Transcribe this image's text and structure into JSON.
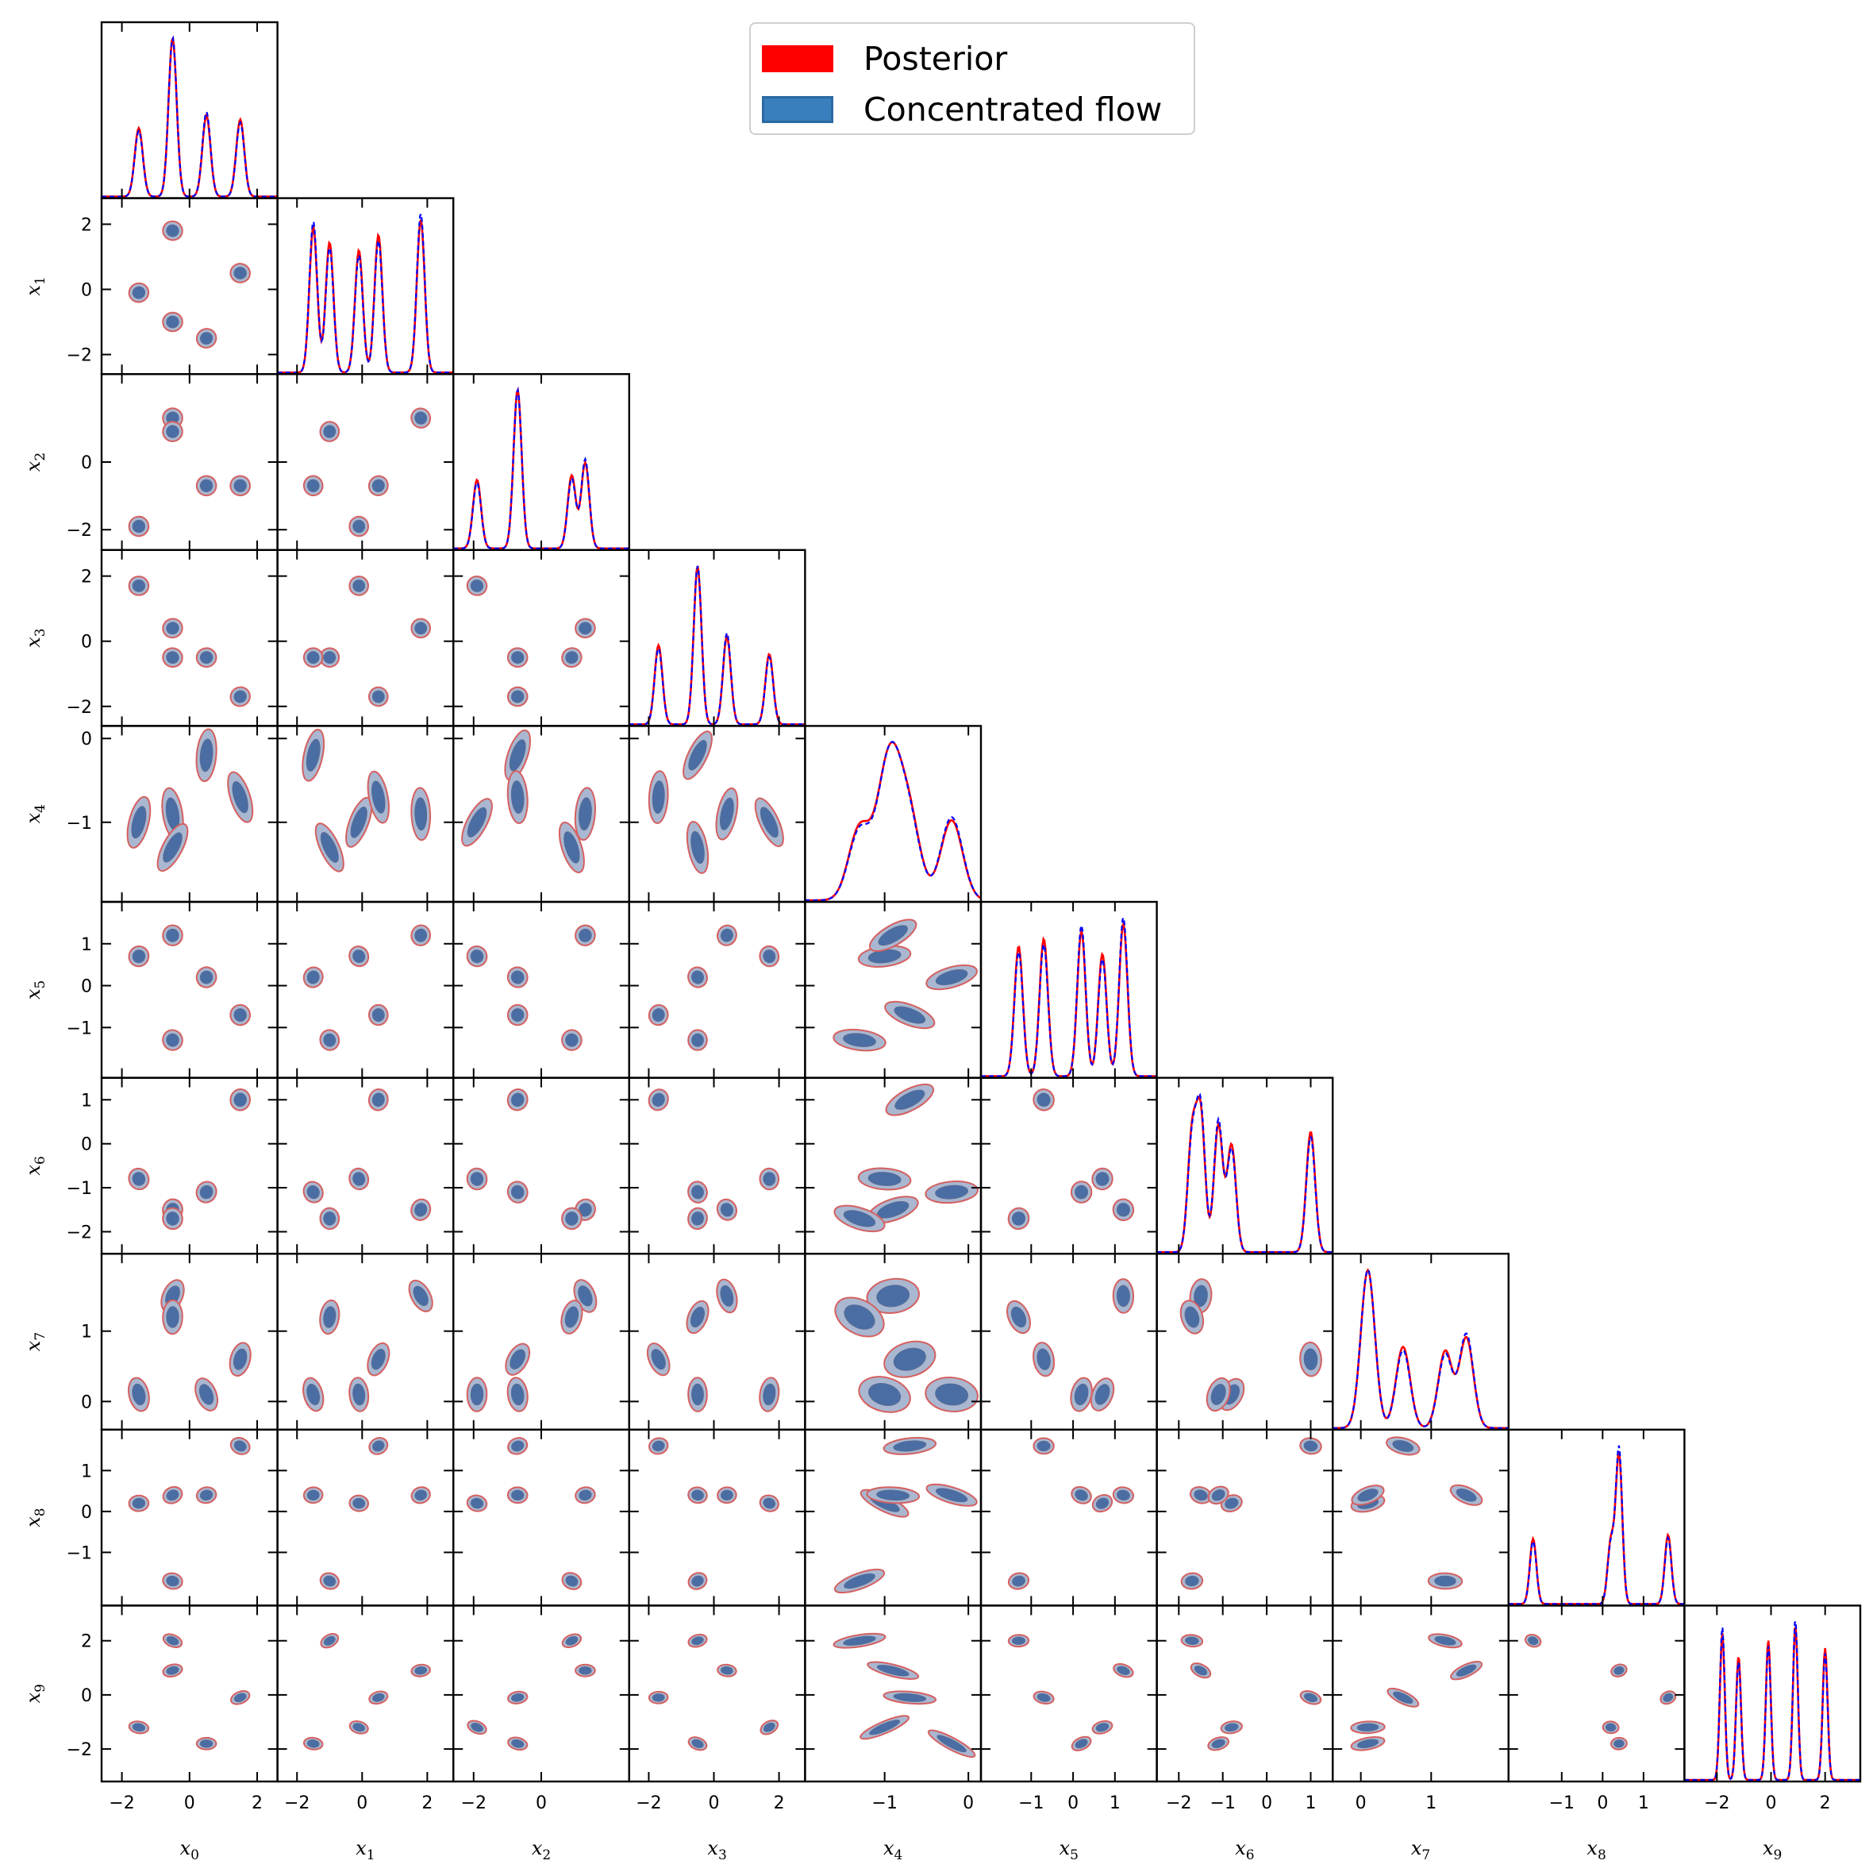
{
  "legend": {
    "posterior_label": "Posterior",
    "flow_label": "Concentrated flow",
    "posterior_color": "#ff0000",
    "flow_color": "#3a7fbd",
    "flow_edge_color": "#2a6aa3"
  },
  "colors": {
    "posterior_line": "#ff0000",
    "flow_line": "#0000ff",
    "contour_outer_fill": "#aab7d0",
    "contour_inner_fill": "#4a6da3",
    "contour_outer_edge": "#d56060",
    "contour_inner_edge": "#556d99"
  },
  "chart_data": {
    "type": "corner",
    "title": "",
    "dimension_labels": [
      "x_0",
      "x_1",
      "x_2",
      "x_3",
      "x_4",
      "x_5",
      "x_6",
      "x_7",
      "x_8",
      "x_9"
    ],
    "axis_ranges": [
      [
        -2.6,
        2.6
      ],
      [
        -2.6,
        2.8
      ],
      [
        -2.6,
        2.6
      ],
      [
        -2.6,
        2.8
      ],
      [
        -1.95,
        0.15
      ],
      [
        -2.2,
        2.0
      ],
      [
        -2.5,
        1.5
      ],
      [
        -0.4,
        2.1
      ],
      [
        -2.3,
        2.0
      ],
      [
        -3.2,
        3.3
      ]
    ],
    "ticks": [
      [
        -2,
        0,
        2
      ],
      [
        -2,
        0,
        2
      ],
      [
        -2,
        0
      ],
      [
        -2,
        0,
        2
      ],
      [
        -1,
        0
      ],
      [
        -1,
        0,
        1
      ],
      [
        -2,
        -1,
        0,
        1
      ],
      [
        0,
        1
      ],
      [
        -1,
        0,
        1
      ],
      [
        -2,
        0,
        2
      ]
    ],
    "tick_labels": [
      [
        "−2",
        "0",
        "2"
      ],
      [
        "−2",
        "0",
        "2"
      ],
      [
        "−2",
        "0"
      ],
      [
        "−2",
        "0",
        "2"
      ],
      [
        "−1",
        "0"
      ],
      [
        "−1",
        "0",
        "1"
      ],
      [
        "−2",
        "−1",
        "0",
        "1"
      ],
      [
        "0",
        "1"
      ],
      [
        "−1",
        "0",
        "1"
      ],
      [
        "−2",
        "0",
        "2"
      ]
    ],
    "modes": [
      [
        -1.5,
        -0.1,
        -1.9,
        1.7,
        -1.0,
        0.7,
        -0.8,
        0.1,
        0.2,
        -1.2
      ],
      [
        -0.5,
        1.8,
        1.3,
        0.4,
        -0.9,
        1.2,
        -1.5,
        1.5,
        0.4,
        0.9
      ],
      [
        -0.5,
        -1.0,
        0.9,
        -0.5,
        -1.3,
        -1.3,
        -1.7,
        1.2,
        -1.7,
        2.0
      ],
      [
        0.5,
        -1.5,
        -0.7,
        -0.5,
        -0.2,
        0.2,
        -1.1,
        0.1,
        0.4,
        -1.8
      ],
      [
        1.5,
        0.5,
        -0.7,
        -1.7,
        -0.7,
        -0.7,
        1.0,
        0.6,
        1.6,
        -0.1
      ]
    ],
    "spreads": [
      0.12,
      0.12,
      0.12,
      0.12,
      0.13,
      0.1,
      0.1,
      0.1,
      0.08,
      0.09
    ],
    "marginal_weights": [
      0.8,
      1.0,
      0.85,
      0.95,
      0.9
    ],
    "series": [
      {
        "name": "Posterior",
        "style": "solid red line"
      },
      {
        "name": "Concentrated flow",
        "style": "dashed blue line"
      }
    ],
    "grid": false,
    "legend_position": "top-center"
  }
}
